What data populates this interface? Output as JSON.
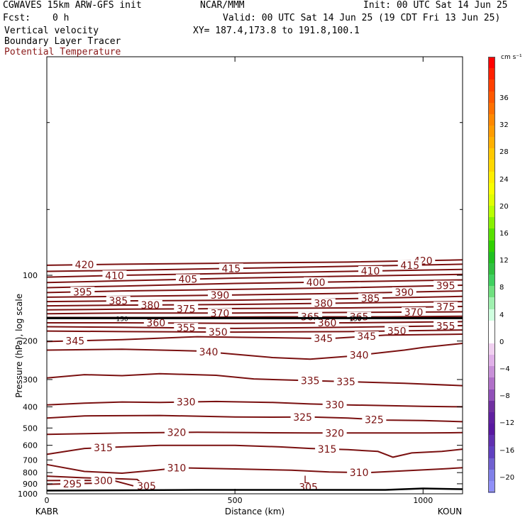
{
  "header": {
    "model": "CGWAVES 15km ARW-GFS init",
    "org": "NCAR/MMM",
    "init": "Init: 00 UTC Sat 14 Jun 25",
    "fcst_label": "Fcst:",
    "fcst_value": "0 h",
    "valid": "Valid: 00 UTC Sat 14 Jun 25 (19 CDT Fri 13 Jun 25)",
    "field1": "Vertical velocity",
    "xy": "XY= 187.4,173.8 to 191.8,100.1",
    "field2": "Boundary Layer Tracer",
    "field3": "Potential Temperature"
  },
  "colors": {
    "contour": "#7a1010",
    "field3_text": "#8b1a1a",
    "frame": "#000000"
  },
  "chart_data": {
    "type": "contour",
    "xlabel": "Distance (km)",
    "ylabel": "Pressure (hPa), log scale",
    "xlim": [
      0,
      1105
    ],
    "ylim": [
      1000,
      10
    ],
    "x_ticks": [
      0,
      500,
      1000
    ],
    "y_ticks": [
      100,
      200,
      300,
      400,
      500,
      600,
      700,
      800,
      900,
      1000
    ],
    "left_label": "KABR",
    "right_label": "KOUN",
    "tropopause_pressure": 157,
    "tropopause_labels": [
      {
        "x": 200,
        "text": "150"
      },
      {
        "x": 820,
        "text": "150"
      }
    ],
    "series": [
      {
        "theta": 420,
        "p": [
          [
            0,
            90
          ],
          [
            200,
            89
          ],
          [
            500,
            88
          ],
          [
            800,
            87
          ],
          [
            1105,
            85
          ]
        ],
        "labels": [
          [
            100,
            "420"
          ],
          [
            1000,
            "420"
          ]
        ]
      },
      {
        "theta": 415,
        "p": [
          [
            0,
            96
          ],
          [
            200,
            95
          ],
          [
            500,
            93
          ],
          [
            800,
            91
          ],
          [
            1105,
            89
          ]
        ],
        "labels": [
          [
            490,
            "415"
          ],
          [
            965,
            "415"
          ]
        ]
      },
      {
        "theta": 410,
        "p": [
          [
            0,
            102
          ],
          [
            200,
            100
          ],
          [
            500,
            98
          ],
          [
            800,
            96
          ],
          [
            1105,
            94
          ]
        ],
        "labels": [
          [
            180,
            "410"
          ],
          [
            860,
            "410"
          ]
        ]
      },
      {
        "theta": 405,
        "p": [
          [
            0,
            108
          ],
          [
            200,
            106
          ],
          [
            500,
            103
          ],
          [
            800,
            101
          ],
          [
            1105,
            99
          ]
        ],
        "labels": [
          [
            375,
            "405"
          ]
        ]
      },
      {
        "theta": 400,
        "p": [
          [
            0,
            114
          ],
          [
            200,
            112
          ],
          [
            500,
            109
          ],
          [
            800,
            107
          ],
          [
            1105,
            105
          ]
        ],
        "labels": [
          [
            715,
            "400"
          ]
        ]
      },
      {
        "theta": 395,
        "p": [
          [
            0,
            120
          ],
          [
            200,
            118
          ],
          [
            500,
            116
          ],
          [
            800,
            114
          ],
          [
            1105,
            111
          ]
        ],
        "labels": [
          [
            95,
            "395"
          ],
          [
            1060,
            "395"
          ]
        ]
      },
      {
        "theta": 390,
        "p": [
          [
            0,
            126
          ],
          [
            200,
            125
          ],
          [
            500,
            123
          ],
          [
            800,
            121
          ],
          [
            1105,
            118
          ]
        ],
        "labels": [
          [
            460,
            "390"
          ],
          [
            950,
            "390"
          ]
        ]
      },
      {
        "theta": 385,
        "p": [
          [
            0,
            132
          ],
          [
            200,
            131
          ],
          [
            500,
            130
          ],
          [
            800,
            128
          ],
          [
            1105,
            125
          ]
        ],
        "labels": [
          [
            190,
            "385"
          ],
          [
            860,
            "385"
          ]
        ]
      },
      {
        "theta": 380,
        "p": [
          [
            0,
            138
          ],
          [
            200,
            137
          ],
          [
            500,
            136
          ],
          [
            800,
            134
          ],
          [
            1105,
            132
          ]
        ],
        "labels": [
          [
            275,
            "380"
          ],
          [
            735,
            "380"
          ]
        ]
      },
      {
        "theta": 375,
        "p": [
          [
            0,
            144
          ],
          [
            200,
            143
          ],
          [
            500,
            142
          ],
          [
            800,
            141
          ],
          [
            1105,
            139
          ]
        ],
        "labels": [
          [
            370,
            "375"
          ],
          [
            1060,
            "375"
          ]
        ]
      },
      {
        "theta": 370,
        "p": [
          [
            0,
            150
          ],
          [
            200,
            149
          ],
          [
            500,
            149
          ],
          [
            800,
            148
          ],
          [
            1105,
            147
          ]
        ],
        "labels": [
          [
            460,
            "370"
          ],
          [
            975,
            "370"
          ]
        ]
      },
      {
        "theta": 365,
        "p": [
          [
            0,
            156
          ],
          [
            300,
            156
          ],
          [
            600,
            155
          ],
          [
            900,
            155
          ],
          [
            1105,
            154
          ]
        ],
        "labels": [
          [
            700,
            "365"
          ],
          [
            830,
            "365"
          ]
        ]
      },
      {
        "theta": 360,
        "p": [
          [
            0,
            165
          ],
          [
            200,
            165
          ],
          [
            500,
            166
          ],
          [
            800,
            165
          ],
          [
            1105,
            163
          ]
        ],
        "labels": [
          [
            290,
            "360"
          ],
          [
            745,
            "360"
          ]
        ]
      },
      {
        "theta": 355,
        "p": [
          [
            0,
            172
          ],
          [
            200,
            173
          ],
          [
            500,
            175
          ],
          [
            800,
            173
          ],
          [
            1105,
            170
          ]
        ],
        "labels": [
          [
            370,
            "355"
          ],
          [
            1060,
            "355"
          ]
        ]
      },
      {
        "theta": 350,
        "p": [
          [
            0,
            180
          ],
          [
            200,
            181
          ],
          [
            500,
            182
          ],
          [
            800,
            181
          ],
          [
            1105,
            178
          ]
        ],
        "labels": [
          [
            455,
            "350"
          ],
          [
            930,
            "350"
          ]
        ]
      },
      {
        "theta": 345,
        "p": [
          [
            0,
            201
          ],
          [
            200,
            197
          ],
          [
            400,
            191
          ],
          [
            600,
            193
          ],
          [
            750,
            195
          ],
          [
            900,
            188
          ],
          [
            1105,
            186
          ]
        ],
        "labels": [
          [
            75,
            "345"
          ],
          [
            735,
            "345"
          ],
          [
            850,
            "345"
          ]
        ]
      },
      {
        "theta": 340,
        "p": [
          [
            0,
            220
          ],
          [
            200,
            218
          ],
          [
            400,
            222
          ],
          [
            600,
            238
          ],
          [
            700,
            242
          ],
          [
            800,
            235
          ],
          [
            950,
            220
          ],
          [
            1000,
            214
          ],
          [
            1105,
            205
          ]
        ],
        "labels": [
          [
            430,
            "340"
          ],
          [
            830,
            "340"
          ]
        ]
      },
      {
        "theta": 335,
        "p": [
          [
            0,
            295
          ],
          [
            100,
            285
          ],
          [
            200,
            288
          ],
          [
            300,
            282
          ],
          [
            450,
            287
          ],
          [
            550,
            298
          ],
          [
            650,
            302
          ],
          [
            800,
            307
          ],
          [
            950,
            312
          ],
          [
            1105,
            320
          ]
        ],
        "labels": [
          [
            700,
            "335"
          ],
          [
            795,
            "335"
          ]
        ]
      },
      {
        "theta": 330,
        "p": [
          [
            0,
            392
          ],
          [
            100,
            385
          ],
          [
            200,
            380
          ],
          [
            300,
            382
          ],
          [
            450,
            378
          ],
          [
            600,
            382
          ],
          [
            700,
            388
          ],
          [
            800,
            392
          ],
          [
            1000,
            398
          ],
          [
            1105,
            400
          ]
        ],
        "labels": [
          [
            370,
            "330"
          ],
          [
            765,
            "330"
          ]
        ]
      },
      {
        "theta": 325,
        "p": [
          [
            0,
            450
          ],
          [
            100,
            440
          ],
          [
            300,
            438
          ],
          [
            500,
            445
          ],
          [
            600,
            446
          ],
          [
            700,
            445
          ],
          [
            800,
            450
          ],
          [
            900,
            460
          ],
          [
            1000,
            462
          ],
          [
            1105,
            468
          ]
        ],
        "labels": [
          [
            680,
            "325"
          ],
          [
            870,
            "325"
          ]
        ]
      },
      {
        "theta": 320,
        "p": [
          [
            0,
            535
          ],
          [
            200,
            527
          ],
          [
            400,
            523
          ],
          [
            550,
            525
          ],
          [
            700,
            527
          ],
          [
            850,
            527
          ],
          [
            1000,
            527
          ],
          [
            1105,
            525
          ]
        ],
        "labels": [
          [
            345,
            "320"
          ],
          [
            765,
            "320"
          ]
        ]
      },
      {
        "theta": 315,
        "p": [
          [
            0,
            660
          ],
          [
            50,
            640
          ],
          [
            100,
            620
          ],
          [
            200,
            610
          ],
          [
            300,
            600
          ],
          [
            500,
            600
          ],
          [
            620,
            610
          ],
          [
            700,
            620
          ],
          [
            800,
            628
          ],
          [
            880,
            640
          ],
          [
            920,
            680
          ],
          [
            970,
            650
          ],
          [
            1050,
            640
          ],
          [
            1105,
            625
          ]
        ],
        "labels": [
          [
            150,
            "315"
          ],
          [
            745,
            "315"
          ]
        ]
      },
      {
        "theta": 310,
        "p": [
          [
            0,
            735
          ],
          [
            100,
            790
          ],
          [
            200,
            805
          ],
          [
            290,
            780
          ],
          [
            350,
            760
          ],
          [
            500,
            770
          ],
          [
            650,
            780
          ],
          [
            750,
            795
          ],
          [
            850,
            800
          ],
          [
            950,
            785
          ],
          [
            1050,
            770
          ],
          [
            1105,
            760
          ]
        ],
        "labels": [
          [
            345,
            "310"
          ],
          [
            830,
            "310"
          ]
        ]
      },
      {
        "theta": 305,
        "p": [
          [
            0,
            830
          ],
          [
            100,
            845
          ],
          [
            200,
            855
          ],
          [
            240,
            860
          ],
          [
            260,
            920
          ],
          [
            290,
            930
          ]
        ],
        "labels": [
          [
            265,
            "305"
          ],
          [
            695,
            "305"
          ]
        ]
      },
      {
        "theta": 300,
        "p": [
          [
            0,
            870
          ],
          [
            100,
            868
          ],
          [
            180,
            873
          ],
          [
            230,
            920
          ]
        ],
        "labels": [
          [
            150,
            "300"
          ]
        ]
      },
      {
        "theta": 295,
        "p": [
          [
            0,
            905
          ],
          [
            60,
            900
          ],
          [
            120,
            895
          ]
        ],
        "labels": [
          [
            68,
            "295"
          ]
        ]
      }
    ],
    "low_label": {
      "x": 690,
      "p": 860,
      "text": "L"
    },
    "ground_pressure": 960
  },
  "colorbar": {
    "units": "cm s⁻¹",
    "labels": [
      "36",
      "32",
      "28",
      "24",
      "20",
      "16",
      "12",
      "8",
      "4",
      "0",
      "−4",
      "−8",
      "−12",
      "−16",
      "−20"
    ],
    "colors": [
      "#ff0000",
      "#ff2000",
      "#ff4000",
      "#ff5800",
      "#ff7000",
      "#ff8800",
      "#ff9c00",
      "#ffb000",
      "#ffc800",
      "#ffd800",
      "#ffee00",
      "#f8ff00",
      "#e0ff00",
      "#b8ff00",
      "#88f000",
      "#58e000",
      "#30d000",
      "#20c020",
      "#30c040",
      "#40d060",
      "#70e080",
      "#a0f0b0",
      "#d0ffe0",
      "#ffffff",
      "#ffffff",
      "#f0d0f0",
      "#e0b0e8",
      "#c890d8",
      "#b070c8",
      "#9050b8",
      "#7030a0",
      "#6020a0",
      "#5818a0",
      "#6030b0",
      "#6040c0",
      "#7060d0",
      "#8080e8",
      "#9090f8"
    ]
  }
}
